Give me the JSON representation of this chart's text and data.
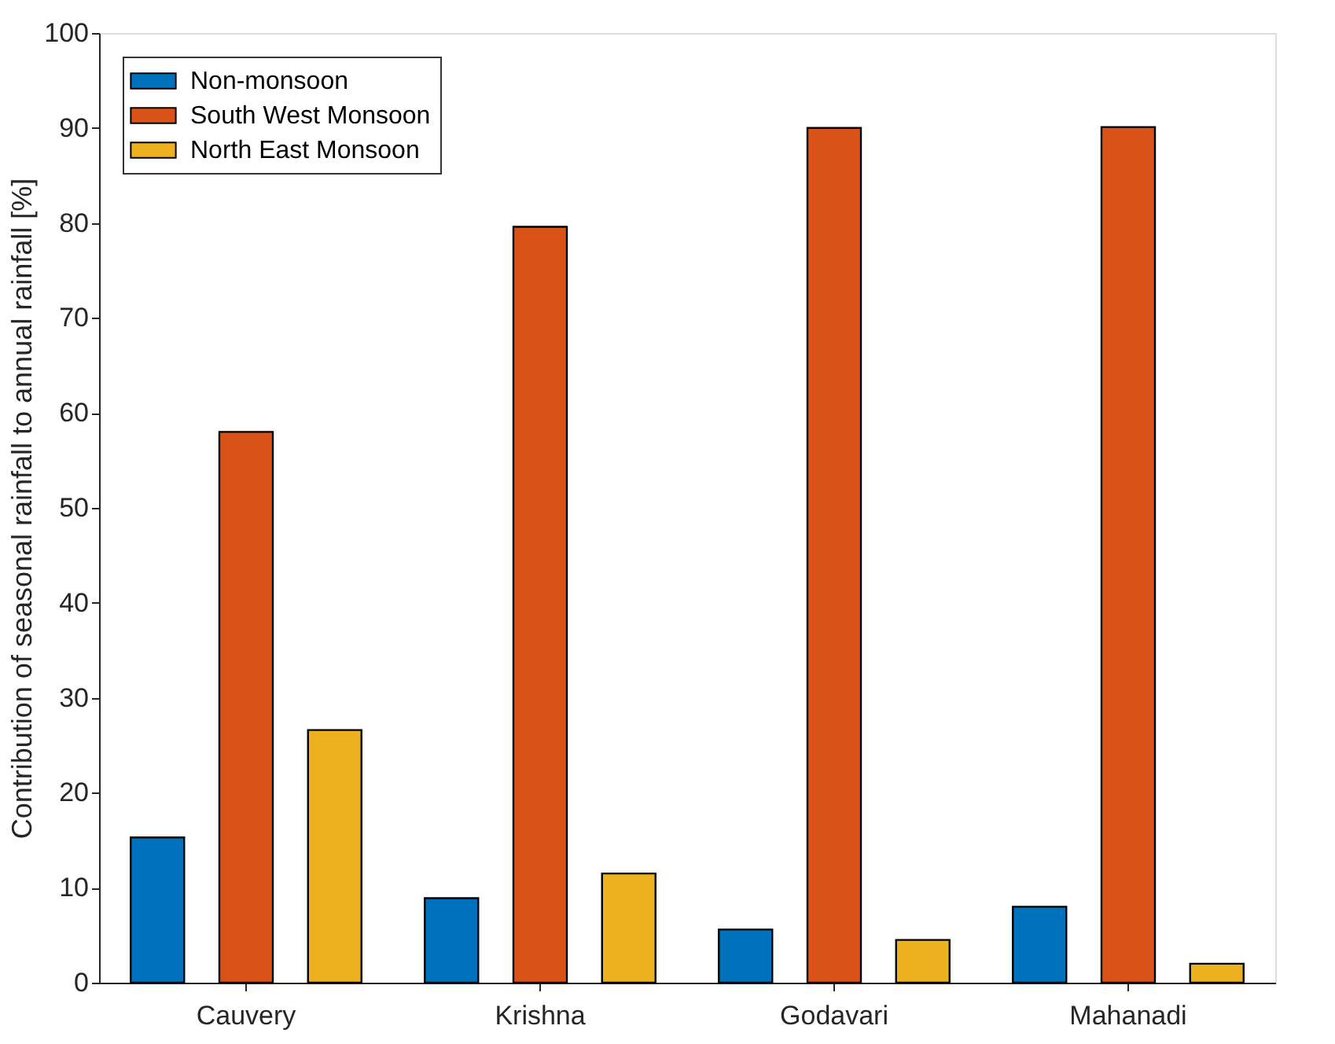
{
  "chart_data": {
    "type": "bar",
    "ylabel": "Contribution of seasonal rainfall to annual rainfall [%]",
    "categories": [
      "Cauvery",
      "Krishna",
      "Godavari",
      "Mahanadi"
    ],
    "series": [
      {
        "name": "Non-monsoon",
        "color": "#0072bd",
        "values": [
          15.3,
          8.9,
          5.6,
          8.0
        ]
      },
      {
        "name": "South West Monsoon",
        "color": "#d95319",
        "values": [
          58.0,
          79.6,
          90.0,
          90.1
        ]
      },
      {
        "name": "North East Monsoon",
        "color": "#edb120",
        "values": [
          26.6,
          11.5,
          4.5,
          2.0
        ]
      }
    ],
    "ylim": [
      0,
      100
    ],
    "yticks": [
      0,
      10,
      20,
      30,
      40,
      50,
      60,
      70,
      80,
      90,
      100
    ],
    "grid": false,
    "legend": "top left"
  }
}
